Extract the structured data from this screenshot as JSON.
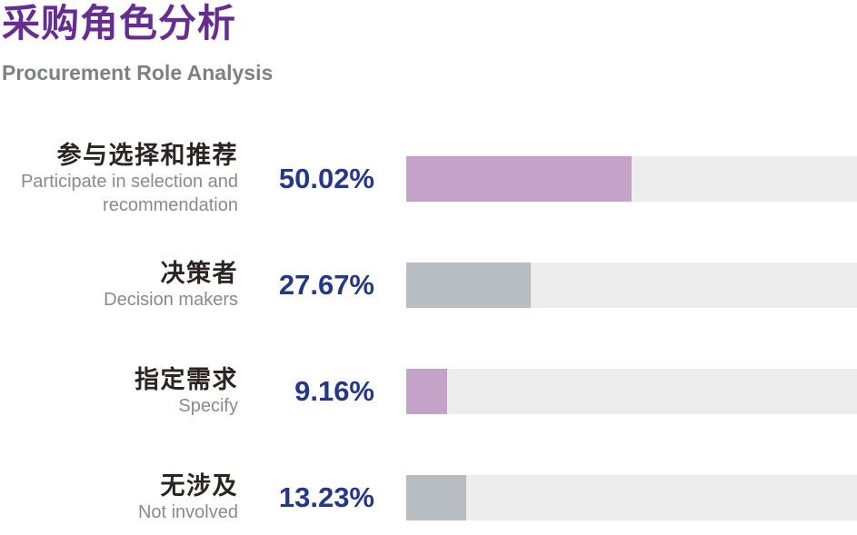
{
  "title": "采购角色分析",
  "subtitle": "Procurement Role Analysis",
  "colors": {
    "title": "#662D91",
    "subtitle": "#7E8083",
    "label_zh": "#2B2422",
    "label_en": "#8A8A8A",
    "percent_text": "#253787",
    "bar_track": "#EDEDEE",
    "bar_mauve": "#C5A3C9",
    "bar_gray": "#B7BDC1"
  },
  "chart_data": {
    "type": "bar",
    "orientation": "horizontal",
    "title": "采购角色分析",
    "subtitle": "Procurement Role Analysis",
    "value_axis": {
      "min": 0,
      "max": 100,
      "unit": "%"
    },
    "grid": false,
    "legend": false,
    "categories": [
      "参与选择和推荐",
      "决策者",
      "指定需求",
      "无涉及"
    ],
    "values": [
      50.02,
      27.67,
      9.16,
      13.23
    ],
    "rows": [
      {
        "label_zh": "参与选择和推荐",
        "label_en": "Participate in selection and recommendation",
        "value": 50.02,
        "display": "50.02%",
        "color": "#C5A3C9"
      },
      {
        "label_zh": "决策者",
        "label_en": "Decision makers",
        "value": 27.67,
        "display": "27.67%",
        "color": "#B7BDC1"
      },
      {
        "label_zh": "指定需求",
        "label_en": "Specify",
        "value": 9.16,
        "display": "9.16%",
        "color": "#C5A3C9"
      },
      {
        "label_zh": "无涉及",
        "label_en": "Not involved",
        "value": 13.23,
        "display": "13.23%",
        "color": "#B7BDC1"
      }
    ]
  }
}
